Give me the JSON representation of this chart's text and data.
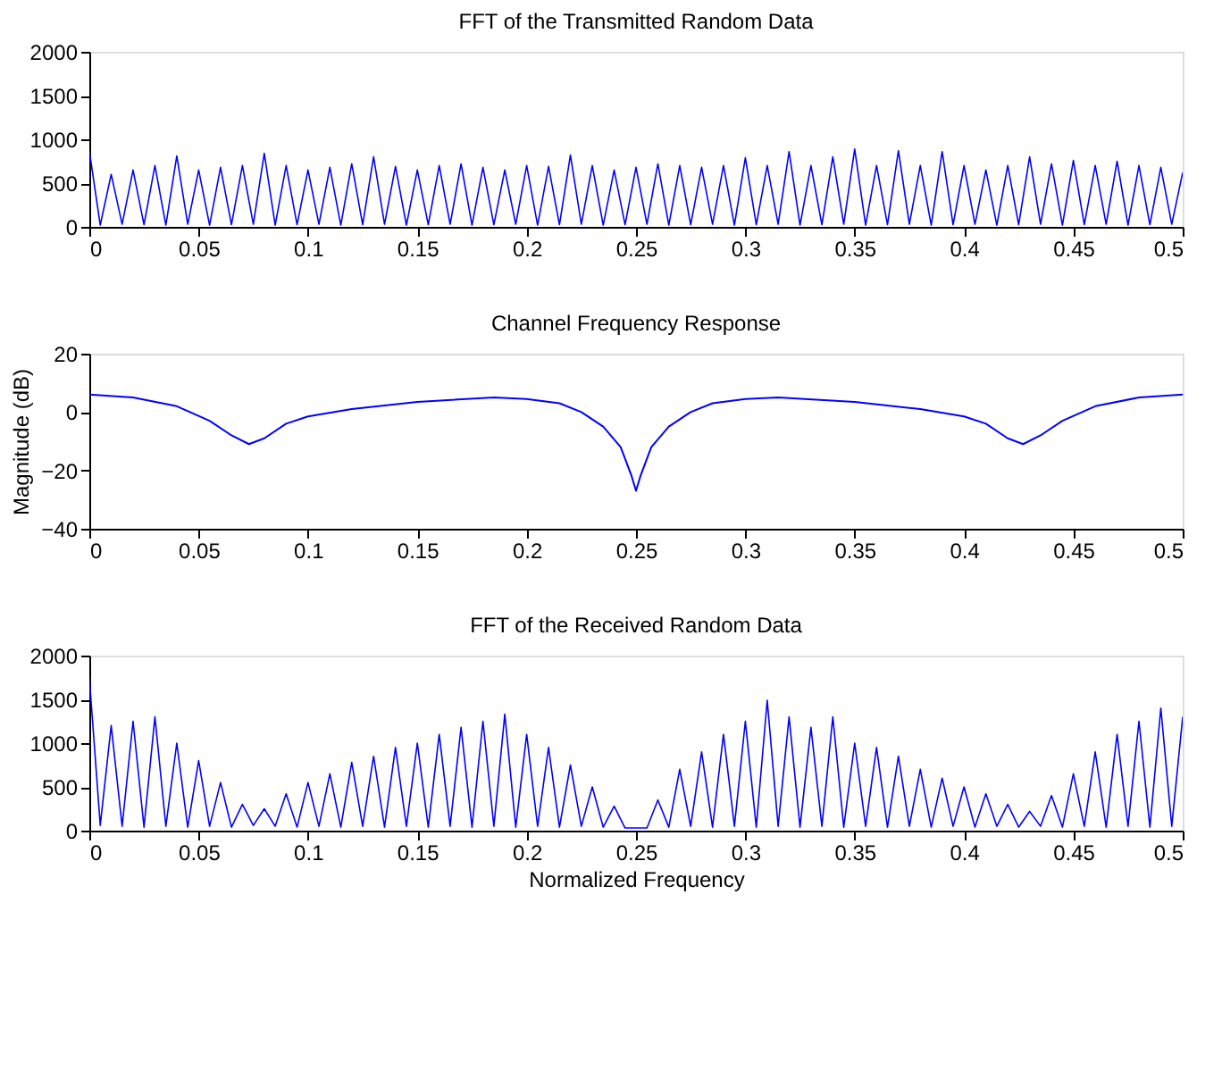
{
  "chart_data": [
    {
      "type": "line",
      "title": "FFT of the Transmitted Random Data",
      "xlim": [
        0,
        0.5
      ],
      "xticks": [
        0,
        0.05,
        0.1,
        0.15,
        0.2,
        0.25,
        0.3,
        0.35,
        0.4,
        0.45,
        0.5
      ],
      "ylim": [
        0,
        2000
      ],
      "yticks": [
        0,
        500,
        1000,
        1500,
        2000
      ],
      "grid": false,
      "series": [
        {
          "color": "#0000ff",
          "x": [
            0,
            0.005,
            0.01,
            0.015,
            0.02,
            0.025,
            0.03,
            0.035,
            0.04,
            0.045,
            0.05,
            0.055,
            0.06,
            0.065,
            0.07,
            0.075,
            0.08,
            0.085,
            0.09,
            0.095,
            0.1,
            0.105,
            0.11,
            0.115,
            0.12,
            0.125,
            0.13,
            0.135,
            0.14,
            0.145,
            0.15,
            0.155,
            0.16,
            0.165,
            0.17,
            0.175,
            0.18,
            0.185,
            0.19,
            0.195,
            0.2,
            0.205,
            0.21,
            0.215,
            0.22,
            0.225,
            0.23,
            0.235,
            0.24,
            0.245,
            0.25,
            0.255,
            0.26,
            0.265,
            0.27,
            0.275,
            0.28,
            0.285,
            0.29,
            0.295,
            0.3,
            0.305,
            0.31,
            0.315,
            0.32,
            0.325,
            0.33,
            0.335,
            0.34,
            0.345,
            0.35,
            0.355,
            0.36,
            0.365,
            0.37,
            0.375,
            0.38,
            0.385,
            0.39,
            0.395,
            0.4,
            0.405,
            0.41,
            0.415,
            0.42,
            0.425,
            0.43,
            0.435,
            0.44,
            0.445,
            0.45,
            0.455,
            0.46,
            0.465,
            0.47,
            0.475,
            0.48,
            0.485,
            0.49,
            0.495,
            0.5
          ],
          "values": [
            870,
            20,
            600,
            30,
            650,
            25,
            700,
            20,
            810,
            30,
            650,
            20,
            680,
            25,
            700,
            30,
            840,
            20,
            700,
            25,
            650,
            30,
            680,
            20,
            720,
            25,
            800,
            30,
            690,
            20,
            650,
            25,
            700,
            30,
            720,
            20,
            680,
            25,
            650,
            30,
            700,
            20,
            690,
            25,
            820,
            30,
            700,
            20,
            650,
            25,
            680,
            30,
            720,
            20,
            700,
            25,
            680,
            30,
            700,
            20,
            790,
            25,
            700,
            30,
            860,
            20,
            700,
            25,
            800,
            30,
            890,
            20,
            700,
            25,
            870,
            30,
            700,
            20,
            860,
            25,
            700,
            30,
            650,
            20,
            700,
            25,
            800,
            30,
            720,
            20,
            760,
            25,
            700,
            30,
            750,
            20,
            700,
            25,
            680,
            30,
            620
          ]
        }
      ]
    },
    {
      "type": "line",
      "title": "Channel Frequency Response",
      "ylabel": "Magnitude (dB)",
      "xlim": [
        0,
        0.5
      ],
      "xticks": [
        0,
        0.05,
        0.1,
        0.15,
        0.2,
        0.25,
        0.3,
        0.35,
        0.4,
        0.45,
        0.5
      ],
      "ylim": [
        -40,
        20
      ],
      "yticks": [
        -40,
        -20,
        0,
        20
      ],
      "grid": false,
      "series": [
        {
          "color": "#0000ff",
          "x": [
            0,
            0.02,
            0.04,
            0.055,
            0.065,
            0.073,
            0.08,
            0.09,
            0.1,
            0.12,
            0.15,
            0.185,
            0.2,
            0.215,
            0.225,
            0.235,
            0.243,
            0.248,
            0.25,
            0.252,
            0.257,
            0.265,
            0.275,
            0.285,
            0.3,
            0.315,
            0.35,
            0.38,
            0.4,
            0.41,
            0.42,
            0.427,
            0.435,
            0.445,
            0.46,
            0.48,
            0.5
          ],
          "values": [
            6,
            5,
            2,
            -3,
            -8,
            -11,
            -9,
            -4,
            -1.5,
            1,
            3.5,
            5,
            4.5,
            3,
            0,
            -5,
            -12,
            -22,
            -27,
            -22,
            -12,
            -5,
            0,
            3,
            4.5,
            5,
            3.5,
            1,
            -1.5,
            -4,
            -9,
            -11,
            -8,
            -3,
            2,
            5,
            6
          ]
        }
      ]
    },
    {
      "type": "line",
      "title": "FFT of the Received Random Data",
      "xlabel": "Normalized Frequency",
      "xlim": [
        0,
        0.5
      ],
      "xticks": [
        0,
        0.05,
        0.1,
        0.15,
        0.2,
        0.25,
        0.3,
        0.35,
        0.4,
        0.45,
        0.5
      ],
      "ylim": [
        0,
        2000
      ],
      "yticks": [
        0,
        500,
        1000,
        1500,
        2000
      ],
      "grid": false,
      "series": [
        {
          "color": "#0000ff",
          "x": [
            0,
            0.005,
            0.01,
            0.015,
            0.02,
            0.025,
            0.03,
            0.035,
            0.04,
            0.045,
            0.05,
            0.055,
            0.06,
            0.065,
            0.07,
            0.075,
            0.08,
            0.085,
            0.09,
            0.095,
            0.1,
            0.105,
            0.11,
            0.115,
            0.12,
            0.125,
            0.13,
            0.135,
            0.14,
            0.145,
            0.15,
            0.155,
            0.16,
            0.165,
            0.17,
            0.175,
            0.18,
            0.185,
            0.19,
            0.195,
            0.2,
            0.205,
            0.21,
            0.215,
            0.22,
            0.225,
            0.23,
            0.235,
            0.24,
            0.245,
            0.25,
            0.255,
            0.26,
            0.265,
            0.27,
            0.275,
            0.28,
            0.285,
            0.29,
            0.295,
            0.3,
            0.305,
            0.31,
            0.315,
            0.32,
            0.325,
            0.33,
            0.335,
            0.34,
            0.345,
            0.35,
            0.355,
            0.36,
            0.365,
            0.37,
            0.375,
            0.38,
            0.385,
            0.39,
            0.395,
            0.4,
            0.405,
            0.41,
            0.415,
            0.42,
            0.425,
            0.43,
            0.435,
            0.44,
            0.445,
            0.45,
            0.455,
            0.46,
            0.465,
            0.47,
            0.475,
            0.48,
            0.485,
            0.49,
            0.495,
            0.5
          ],
          "values": [
            1750,
            60,
            1200,
            50,
            1250,
            40,
            1300,
            50,
            1000,
            40,
            800,
            50,
            550,
            40,
            300,
            60,
            250,
            50,
            420,
            40,
            550,
            50,
            650,
            40,
            780,
            50,
            850,
            40,
            950,
            50,
            1000,
            40,
            1100,
            50,
            1180,
            40,
            1250,
            50,
            1330,
            40,
            1100,
            50,
            950,
            40,
            750,
            50,
            500,
            40,
            280,
            30,
            30,
            30,
            350,
            40,
            700,
            50,
            900,
            40,
            1100,
            50,
            1250,
            40,
            1490,
            50,
            1300,
            40,
            1180,
            50,
            1300,
            40,
            1000,
            50,
            950,
            40,
            850,
            50,
            700,
            40,
            600,
            50,
            500,
            40,
            420,
            50,
            300,
            40,
            220,
            50,
            400,
            40,
            650,
            50,
            900,
            40,
            1100,
            50,
            1250,
            40,
            1400,
            50,
            1300
          ]
        }
      ]
    }
  ]
}
